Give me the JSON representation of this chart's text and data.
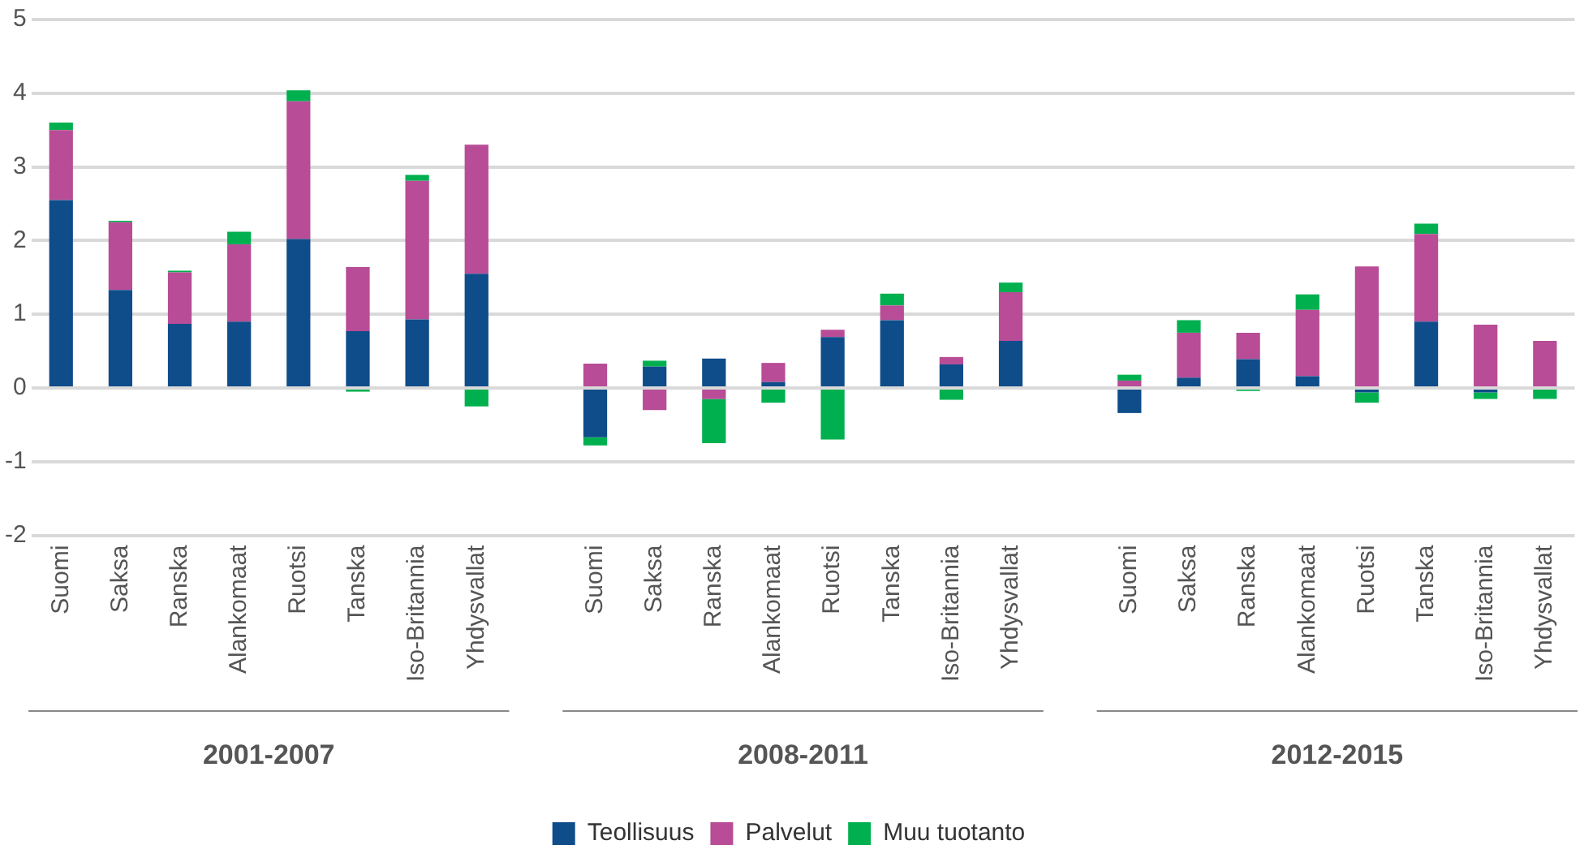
{
  "chart_data": {
    "type": "bar",
    "stacked": true,
    "categories": [
      "Suomi",
      "Saksa",
      "Ranska",
      "Alankomaat",
      "Ruotsi",
      "Tanska",
      "Iso-Britannia",
      "Yhdysvallat",
      null,
      "Suomi",
      "Saksa",
      "Ranska",
      "Alankomaat",
      "Ruotsi",
      "Tanska",
      "Iso-Britannia",
      "Yhdysvallat",
      null,
      "Suomi",
      "Saksa",
      "Ranska",
      "Alankomaat",
      "Ruotsi",
      "Tanska",
      "Iso-Britannia",
      "Yhdysvallat"
    ],
    "series": [
      {
        "name": "Teollisuus",
        "color": "#0f4c8a",
        "values": [
          2.55,
          1.33,
          0.87,
          0.9,
          2.02,
          0.77,
          0.93,
          1.55,
          null,
          -0.67,
          0.29,
          0.4,
          0.08,
          0.69,
          0.92,
          0.32,
          0.64,
          null,
          -0.34,
          0.14,
          0.39,
          0.16,
          -0.06,
          0.9,
          -0.06,
          null
        ]
      },
      {
        "name": "Palvelut",
        "color": "#b84c96",
        "values": [
          0.95,
          0.92,
          0.7,
          1.05,
          1.87,
          0.87,
          1.88,
          1.75,
          null,
          0.33,
          -0.3,
          -0.15,
          0.26,
          0.1,
          0.2,
          0.1,
          0.66,
          null,
          0.1,
          0.61,
          0.36,
          0.9,
          1.65,
          1.19,
          0.86,
          0.64
        ]
      },
      {
        "name": "Muu tuotanto",
        "color": "#00b04f",
        "values": [
          0.1,
          0.02,
          0.02,
          0.17,
          0.15,
          -0.05,
          0.08,
          -0.25,
          null,
          -0.11,
          0.08,
          -0.6,
          -0.2,
          -0.7,
          0.16,
          -0.16,
          0.13,
          null,
          0.08,
          0.17,
          -0.04,
          0.21,
          -0.14,
          0.14,
          -0.09,
          -0.15
        ]
      }
    ],
    "ylim": [
      -2,
      5
    ],
    "yticks": [
      -2,
      -1,
      0,
      1,
      2,
      3,
      4,
      5
    ],
    "grid": "y",
    "legend": "bottom",
    "annotations": [
      "2001-2007",
      "2008-2011",
      "2012-2015"
    ]
  }
}
